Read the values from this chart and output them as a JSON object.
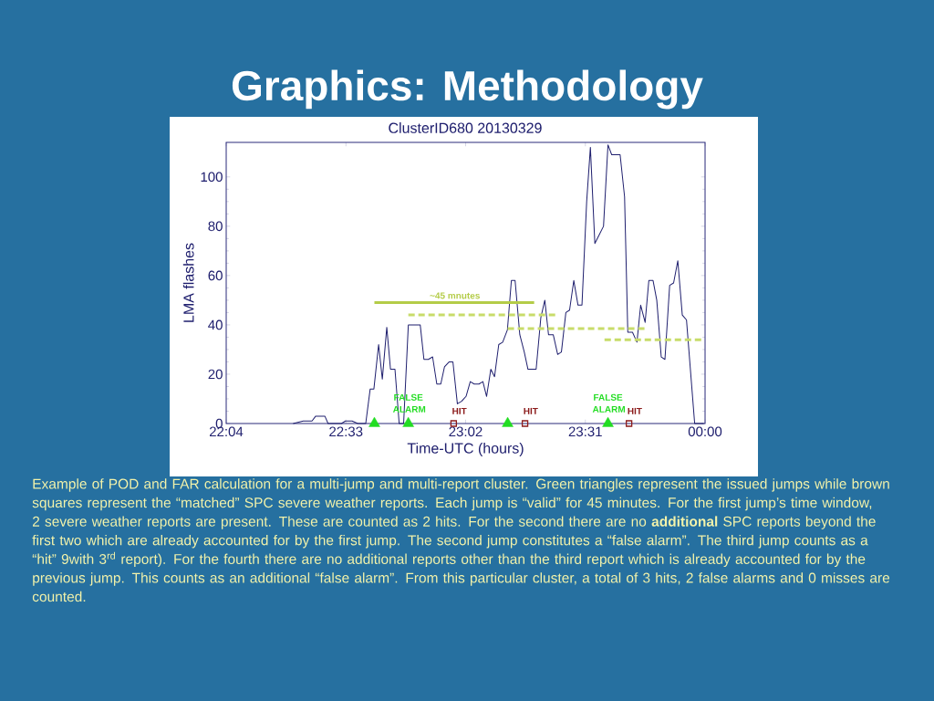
{
  "chart_data": {
    "type": "line",
    "title": "Graphics: Methodology",
    "subtitle": "ClusterID680 20130329",
    "xlabel": "Time-UTC (hours)",
    "ylabel": "LMA flashes",
    "xlim": [
      22.0667,
      24
    ],
    "ylim": [
      0,
      114
    ],
    "xticks": [
      {
        "value": 22.0667,
        "label": "22:04"
      },
      {
        "value": 22.55,
        "label": "22:33"
      },
      {
        "value": 23.0333,
        "label": "23:02"
      },
      {
        "value": 23.5167,
        "label": "23:31"
      },
      {
        "value": 24,
        "label": "00:00"
      }
    ],
    "yticks": [
      0,
      20,
      40,
      60,
      80,
      100
    ],
    "grid": false,
    "legend": false,
    "series": [
      {
        "color": "#1f1f6e",
        "line_style": "solid",
        "marker": "none",
        "x": [
          22.337,
          22.378,
          22.413,
          22.428,
          22.465,
          22.478,
          22.532,
          22.548,
          22.575,
          22.598,
          22.63,
          22.648,
          22.663,
          22.682,
          22.697,
          22.715,
          22.73,
          22.748,
          22.765,
          22.783,
          22.802,
          22.85,
          22.865,
          22.883,
          22.9,
          22.917,
          22.933,
          22.948,
          22.967,
          22.982,
          23.0,
          23.017,
          23.035,
          23.052,
          23.068,
          23.087,
          23.103,
          23.118,
          23.135,
          23.15,
          23.167,
          23.183,
          23.202,
          23.218,
          23.233,
          23.252,
          23.27,
          23.285,
          23.318,
          23.337,
          23.353,
          23.368,
          23.387,
          23.405,
          23.42,
          23.438,
          23.453,
          23.47,
          23.487,
          23.503,
          23.522,
          23.537,
          23.555,
          23.59,
          23.608,
          23.623,
          23.657,
          23.675,
          23.688,
          23.707,
          23.725,
          23.74,
          23.758,
          23.773,
          23.79,
          23.805,
          23.823,
          23.838,
          23.857,
          23.873,
          23.89,
          23.908,
          23.925,
          23.958,
          23.995
        ],
        "values": [
          0,
          1,
          1,
          3,
          3,
          0,
          0,
          1,
          1,
          0,
          0,
          14,
          14,
          32,
          18,
          39,
          22,
          22,
          0,
          0,
          40,
          40,
          26,
          26,
          27,
          16,
          16,
          23,
          25,
          25,
          8,
          9,
          11,
          17,
          16,
          16,
          17,
          11,
          22,
          19,
          32,
          33,
          38,
          58,
          58,
          36,
          29,
          22,
          22,
          43,
          50,
          36,
          36,
          28,
          29,
          45,
          46,
          58,
          48,
          48,
          90,
          112,
          73,
          80,
          113,
          109,
          109,
          92,
          37,
          37,
          33,
          48,
          41,
          58,
          58,
          50,
          27,
          26,
          56,
          57,
          66,
          44,
          42,
          0,
          0
        ]
      },
      {
        "type": "line",
        "color": "#b4cc48",
        "line_style": "solid",
        "marker": "none",
        "x": [
          22.665,
          23.31
        ],
        "values": [
          49,
          49
        ]
      },
      {
        "type": "line",
        "color": "#c8dc6a",
        "line_style": "dashed",
        "marker": "none",
        "x": [
          22.802,
          23.402
        ],
        "values": [
          44,
          44
        ]
      },
      {
        "type": "line",
        "color": "#c8dc6a",
        "line_style": "dashed",
        "marker": "none",
        "x": [
          23.203,
          23.764
        ],
        "values": [
          38.5,
          38.5
        ]
      },
      {
        "type": "line",
        "color": "#c8dc6a",
        "line_style": "dashed",
        "marker": "none",
        "x": [
          23.594,
          23.993
        ],
        "values": [
          34,
          34
        ]
      },
      {
        "type": "scatter",
        "color": "#22dd22",
        "marker": "triangle",
        "x": [
          22.665,
          22.802,
          23.203,
          23.608
        ],
        "values": [
          0,
          0,
          0,
          0
        ]
      },
      {
        "type": "scatter",
        "color": "#8b1a1a",
        "marker": "square",
        "x": [
          22.985,
          23.273,
          23.693
        ],
        "values": [
          0,
          0,
          0
        ]
      }
    ],
    "annotations": [
      {
        "text": "~45 mnutes",
        "x": 22.99,
        "y": 49
      },
      {
        "text": "FALSE ALARM",
        "x": 22.802,
        "y": 0
      },
      {
        "text": "HIT",
        "x": 22.985,
        "y": 0
      },
      {
        "text": "HIT",
        "x": 23.273,
        "y": 0
      },
      {
        "text": "FALSE ALARM",
        "x": 23.608,
        "y": 0
      },
      {
        "text": "HIT",
        "x": 23.693,
        "y": 0
      },
      "Example of POD and FAR calculation for a multi-jump and multi-report cluster. Green triangles represent the issued jumps while brown squares represent the “matched” SPC severe weather reports. Each jump is “valid” for 45 minutes.  For the first jump’s time window, 2 severe weather reports are present. These are counted as 2 hits. For the second there are no **additional** SPC reports beyond the first two which are already accounted for by the first jump. The second jump constitutes a “false alarm”. The third jump counts as a “hit” 9with 3$^{rd}$ report). For the fourth there are no additional reports other than the third report which is already accounted for by the previous jump. This counts as an additional “false alarm”. From this particular cluster, a total of 3 hits, 2 false alarms and 0 misses are counted."
    ]
  }
}
